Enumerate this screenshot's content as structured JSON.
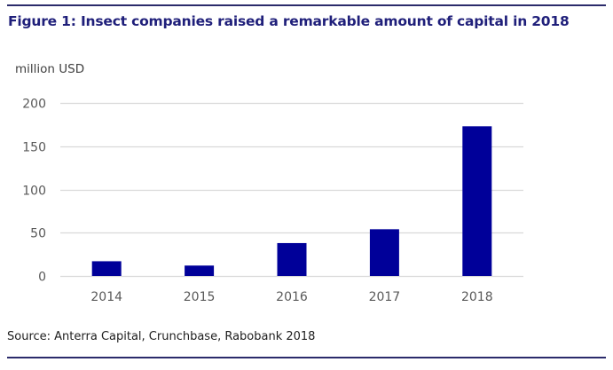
{
  "figure": {
    "title": "Figure 1: Insect companies raised a remarkable amount of capital in 2018",
    "unit_label": "million USD",
    "source": "Source: Anterra Capital, Crunchbase, Rabobank 2018"
  },
  "colors": {
    "bar": "#000099",
    "title": "#1f1f7a",
    "rule": "#2b2b6b",
    "grid": "#d9d9d9"
  },
  "chart_data": {
    "type": "bar",
    "title": "Figure 1: Insect companies raised a remarkable amount of capital in 2018",
    "xlabel": "",
    "ylabel": "million USD",
    "categories": [
      "2014",
      "2015",
      "2016",
      "2017",
      "2018"
    ],
    "values": [
      17,
      12,
      38,
      54,
      173
    ],
    "ylim": [
      0,
      200
    ],
    "yticks": [
      0,
      50,
      100,
      150,
      200
    ],
    "ytick_labels": [
      "0",
      "50",
      "100",
      "150",
      "200"
    ],
    "grid": true,
    "legend": "none"
  }
}
